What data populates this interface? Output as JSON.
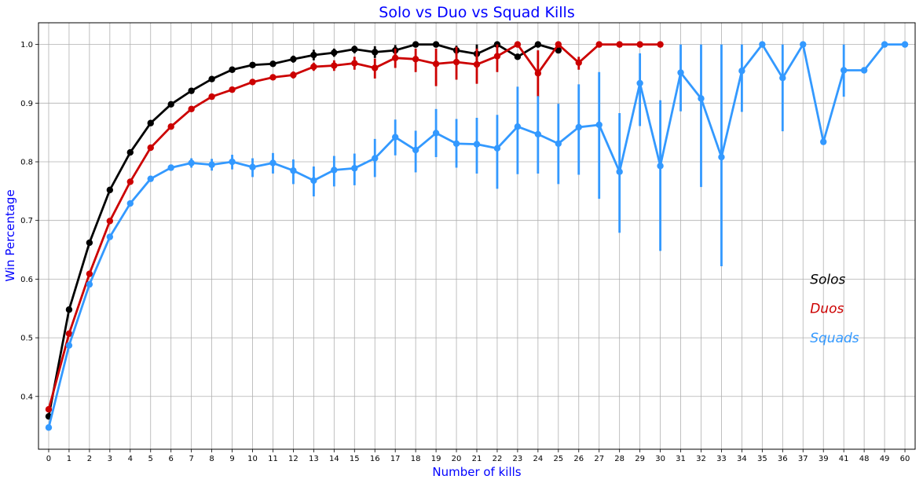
{
  "chart_data": {
    "type": "line",
    "title": "Solo vs Duo vs Squad Kills",
    "xlabel": "Number of kills",
    "ylabel": "Win Percentage",
    "categories": [
      "0",
      "1",
      "2",
      "3",
      "4",
      "5",
      "6",
      "7",
      "8",
      "9",
      "10",
      "11",
      "12",
      "13",
      "14",
      "15",
      "16",
      "17",
      "18",
      "19",
      "20",
      "21",
      "22",
      "23",
      "24",
      "25",
      "26",
      "27",
      "28",
      "29",
      "30",
      "31",
      "32",
      "33",
      "34",
      "35",
      "36",
      "37",
      "39",
      "41",
      "48",
      "49",
      "60"
    ],
    "ylim": [
      0.31,
      1.037
    ],
    "yticks": [
      0.4,
      0.5,
      0.6,
      0.7,
      0.8,
      0.9,
      1.0
    ],
    "ytick_labels": [
      "0.4",
      "0.5",
      "0.6",
      "0.7",
      "0.8",
      "0.9",
      "1.0"
    ],
    "grid": true,
    "title_color": "#0000ff",
    "label_color": "#0000ff",
    "series": [
      {
        "name": "Solos",
        "color": "#000000",
        "values": [
          0.366,
          0.548,
          0.662,
          0.752,
          0.816,
          0.866,
          0.898,
          0.921,
          0.941,
          0.957,
          0.965,
          0.967,
          0.975,
          0.982,
          0.986,
          0.992,
          0.987,
          0.99,
          1.0,
          1.0,
          0.99,
          0.984,
          1.0,
          0.979,
          1.0,
          0.99,
          null,
          null,
          null,
          null,
          null,
          null,
          null,
          null,
          null,
          null,
          null,
          null,
          null,
          null,
          null,
          null,
          null
        ],
        "err_low": [
          null,
          null,
          null,
          null,
          null,
          null,
          null,
          null,
          null,
          null,
          null,
          null,
          0.969,
          0.973,
          0.979,
          0.985,
          0.977,
          0.981,
          null,
          null,
          0.982,
          0.967,
          null,
          null,
          null,
          null,
          null,
          null,
          null,
          null,
          null,
          null,
          null,
          null,
          null,
          null,
          null,
          null,
          null,
          null,
          null,
          null,
          null
        ],
        "err_high": [
          null,
          null,
          null,
          null,
          null,
          null,
          null,
          null,
          null,
          null,
          null,
          null,
          0.981,
          0.991,
          0.993,
          0.998,
          0.997,
          0.999,
          null,
          null,
          0.998,
          1.0,
          null,
          null,
          null,
          null,
          null,
          null,
          null,
          null,
          null,
          null,
          null,
          null,
          null,
          null,
          null,
          null,
          null,
          null,
          null,
          null,
          null
        ]
      },
      {
        "name": "Duos",
        "color": "#cc0000",
        "values": [
          0.378,
          0.507,
          0.609,
          0.699,
          0.766,
          0.824,
          0.86,
          0.89,
          0.911,
          0.923,
          0.936,
          0.944,
          0.948,
          0.962,
          0.964,
          0.968,
          0.96,
          0.977,
          0.975,
          0.967,
          0.97,
          0.966,
          0.98,
          1.0,
          0.951,
          1.0,
          0.969,
          1.0,
          1.0,
          1.0,
          1.0,
          null,
          null,
          null,
          null,
          null,
          null,
          null,
          null,
          null,
          null,
          null,
          null
        ],
        "err_low": [
          null,
          null,
          null,
          null,
          null,
          null,
          null,
          null,
          null,
          null,
          null,
          null,
          0.942,
          0.955,
          0.955,
          0.957,
          0.942,
          0.96,
          0.953,
          0.929,
          0.94,
          0.933,
          0.953,
          null,
          0.91,
          null,
          0.957,
          null,
          null,
          null,
          null,
          null,
          null,
          null,
          null,
          null,
          null,
          null,
          null,
          null,
          null,
          null,
          null
        ],
        "err_high": [
          null,
          null,
          null,
          null,
          null,
          null,
          null,
          null,
          null,
          null,
          null,
          null,
          0.954,
          0.969,
          0.973,
          0.979,
          0.976,
          0.993,
          0.993,
          0.993,
          0.996,
          0.993,
          1.0,
          null,
          0.99,
          null,
          0.979,
          null,
          null,
          null,
          null,
          null,
          null,
          null,
          null,
          null,
          null,
          null,
          null,
          null,
          null,
          null,
          null
        ]
      },
      {
        "name": "Squads",
        "color": "#3399ff",
        "values": [
          0.347,
          0.487,
          0.591,
          0.672,
          0.729,
          0.771,
          0.79,
          0.798,
          0.795,
          0.8,
          0.791,
          0.798,
          0.785,
          0.768,
          0.786,
          0.789,
          0.806,
          0.842,
          0.82,
          0.849,
          0.831,
          0.83,
          0.823,
          0.86,
          0.847,
          0.831,
          0.859,
          0.863,
          0.783,
          0.934,
          0.793,
          0.952,
          0.908,
          0.808,
          0.955,
          1.0,
          0.943,
          1.0,
          0.834,
          0.956,
          0.956,
          1.0,
          1.0
        ],
        "err_low": [
          null,
          null,
          null,
          null,
          null,
          null,
          null,
          0.79,
          0.785,
          0.787,
          0.774,
          0.78,
          0.762,
          0.741,
          0.758,
          0.76,
          0.774,
          0.811,
          0.782,
          0.808,
          0.79,
          0.78,
          0.754,
          0.779,
          0.78,
          0.762,
          0.778,
          0.737,
          0.679,
          0.861,
          0.648,
          0.886,
          0.757,
          0.622,
          0.885,
          null,
          0.852,
          null,
          null,
          0.911,
          null,
          null,
          null
        ],
        "err_high": [
          null,
          null,
          null,
          null,
          null,
          null,
          null,
          0.806,
          0.805,
          0.812,
          0.806,
          0.815,
          0.804,
          0.792,
          0.81,
          0.814,
          0.839,
          0.872,
          0.853,
          0.89,
          0.873,
          0.875,
          0.88,
          0.928,
          0.912,
          0.899,
          0.932,
          0.953,
          0.883,
          0.985,
          0.905,
          1.0,
          1.0,
          1.0,
          1.0,
          null,
          1.0,
          null,
          null,
          1.0,
          null,
          null,
          null
        ]
      }
    ],
    "legend": {
      "placement": "right",
      "entries": [
        {
          "label": "Solos",
          "color": "#000000"
        },
        {
          "label": "Duos",
          "color": "#cc0000"
        },
        {
          "label": "Squads",
          "color": "#3399ff"
        }
      ]
    }
  }
}
